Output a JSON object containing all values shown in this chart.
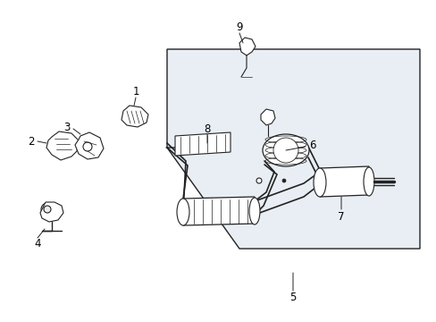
{
  "bg_color": "#ffffff",
  "box_color": "#e8eef4",
  "box_outline": "#222222",
  "line_color": "#222222",
  "label_color": "#000000",
  "font_size": 8.5,
  "figure_width": 4.89,
  "figure_height": 3.6,
  "dpi": 100
}
